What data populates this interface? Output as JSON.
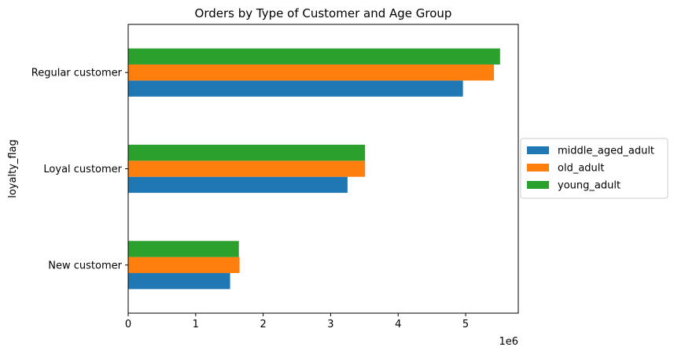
{
  "chart_data": {
    "type": "bar",
    "orientation": "horizontal",
    "title": "Orders by Type of Customer and Age Group",
    "ylabel": "loyalty_flag",
    "xlabel": "",
    "x_offset_label": "1e6",
    "categories": [
      "New customer",
      "Loyal customer",
      "Regular customer"
    ],
    "x_ticks": [
      "0",
      "1",
      "2",
      "3",
      "4",
      "5"
    ],
    "xlim": [
      0,
      5.78
    ],
    "value_scale": 1000000,
    "grid": false,
    "legend_position": "center-right, outside plot",
    "series": [
      {
        "name": "middle_aged_adult",
        "color": "#1f77b4",
        "values": [
          1.51,
          3.25,
          4.96
        ]
      },
      {
        "name": "old_adult",
        "color": "#ff7f0e",
        "values": [
          1.65,
          3.51,
          5.42
        ]
      },
      {
        "name": "young_adult",
        "color": "#2ca02c",
        "values": [
          1.64,
          3.51,
          5.51
        ]
      }
    ]
  }
}
